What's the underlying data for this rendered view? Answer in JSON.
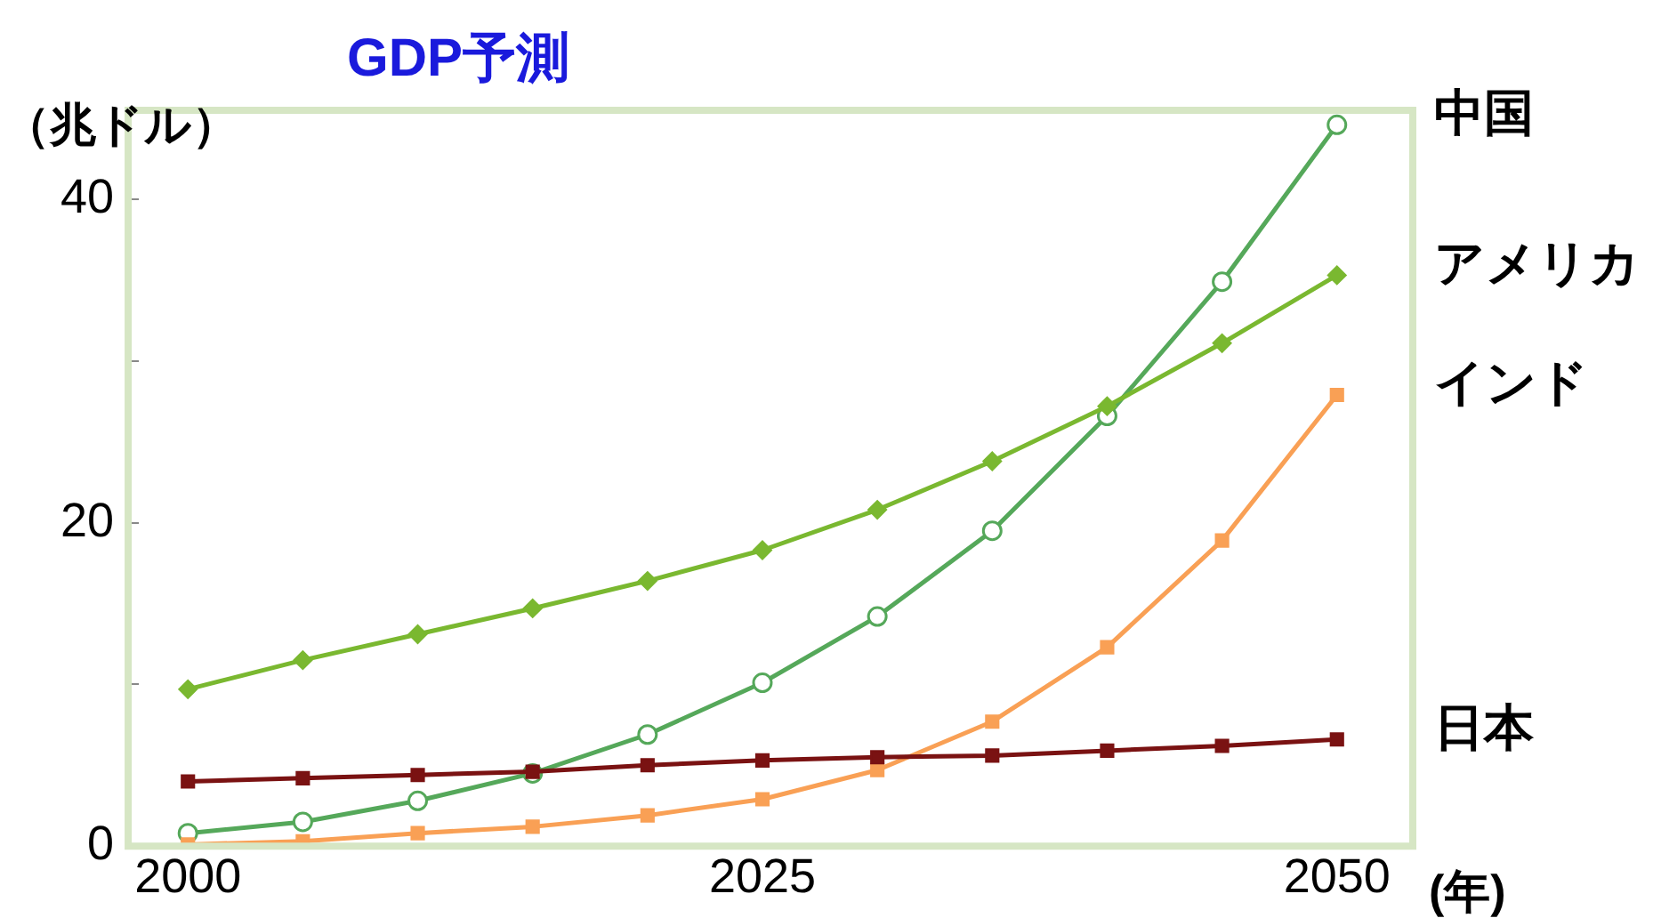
{
  "chart_data": {
    "type": "line",
    "title": "GDP予測",
    "ylabel": "（兆ドル）",
    "xlabel": "(年)",
    "x": [
      2000,
      2005,
      2010,
      2015,
      2020,
      2025,
      2030,
      2035,
      2040,
      2045,
      2050
    ],
    "xlim": [
      1997.4,
      2053.3
    ],
    "xticks": [
      2000,
      2025,
      2050
    ],
    "ylim": [
      0,
      45.5
    ],
    "yticks": [
      0,
      {
        "value": 10,
        "label": null
      },
      20,
      {
        "value": 30,
        "label": null
      },
      40
    ],
    "grid": false,
    "legend": false,
    "series": [
      {
        "name": "中国",
        "color": "#55a85a",
        "marker": "circle",
        "values": [
          0.8,
          1.5,
          2.8,
          4.5,
          6.9,
          10.1,
          14.2,
          19.5,
          26.6,
          34.9,
          44.6
        ]
      },
      {
        "name": "アメリカ",
        "color": "#7ab830",
        "marker": "diamond",
        "values": [
          9.7,
          11.5,
          13.1,
          14.7,
          16.4,
          18.3,
          20.8,
          23.8,
          27.2,
          31.1,
          35.3
        ]
      },
      {
        "name": "インド",
        "color": "#f9a055",
        "marker": "square",
        "values": [
          0.1,
          0.3,
          0.8,
          1.2,
          1.9,
          2.9,
          4.7,
          7.7,
          12.3,
          18.9,
          27.9
        ]
      },
      {
        "name": "日本",
        "color": "#7a1212",
        "marker": "square",
        "values": [
          4.0,
          4.2,
          4.4,
          4.6,
          5.0,
          5.3,
          5.5,
          5.6,
          5.9,
          6.2,
          6.6
        ]
      }
    ]
  }
}
